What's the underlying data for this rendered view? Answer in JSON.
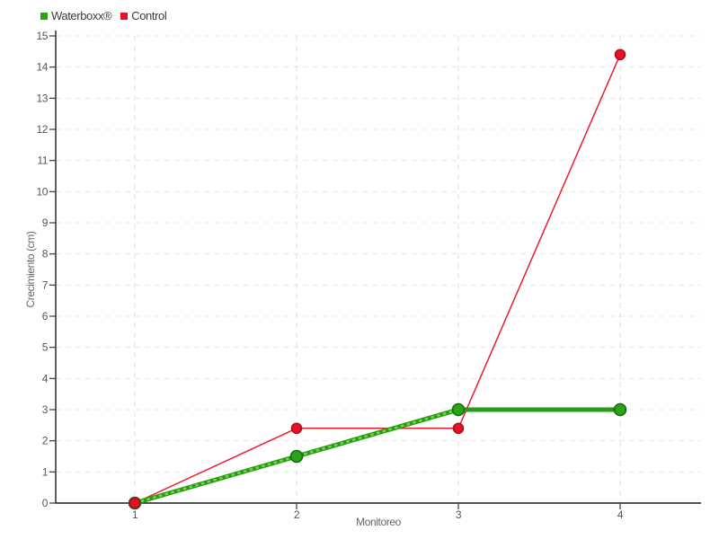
{
  "chart_data": {
    "type": "line",
    "x": [
      1,
      2,
      3,
      4
    ],
    "x_tick_labels": [
      "1",
      "2",
      "3",
      "4"
    ],
    "series": [
      {
        "name": "Waterboxx®",
        "values": [
          0,
          1.5,
          3,
          3
        ],
        "color": "#249c16",
        "marker_color": "#2aa315",
        "marker_edge": "#15691a",
        "line_width": 5,
        "marker_radius": 6.5,
        "dash_overlay": {
          "color": "#7bd73a",
          "width": 2.5,
          "dash": "3.5 3.5",
          "end_index": 2
        }
      },
      {
        "name": "Control",
        "values": [
          0,
          2.4,
          2.4,
          14.4
        ],
        "color": "#ee1b2c",
        "marker_color": "#e81126",
        "marker_edge": "#aa0f1d",
        "line_width": 1.5,
        "marker_radius": 5.5
      }
    ],
    "title": "",
    "xlabel": "Monitoreo",
    "ylabel": "Crecimiento (cm)",
    "ylim": [
      0,
      15
    ],
    "y_tick_step": 1,
    "grid": "dashed",
    "legend_position": "top-left"
  },
  "style": {
    "axis_line_color": "#1a1a1a",
    "tick_mark_color": "#444444",
    "tick_label_color": "#555555",
    "axis_title_color": "#666666",
    "h_grid_color": "#e8e8e8",
    "v_grid_color": "#dedede",
    "legend_text_color": "#3c3c3c",
    "background": "#ffffff"
  }
}
